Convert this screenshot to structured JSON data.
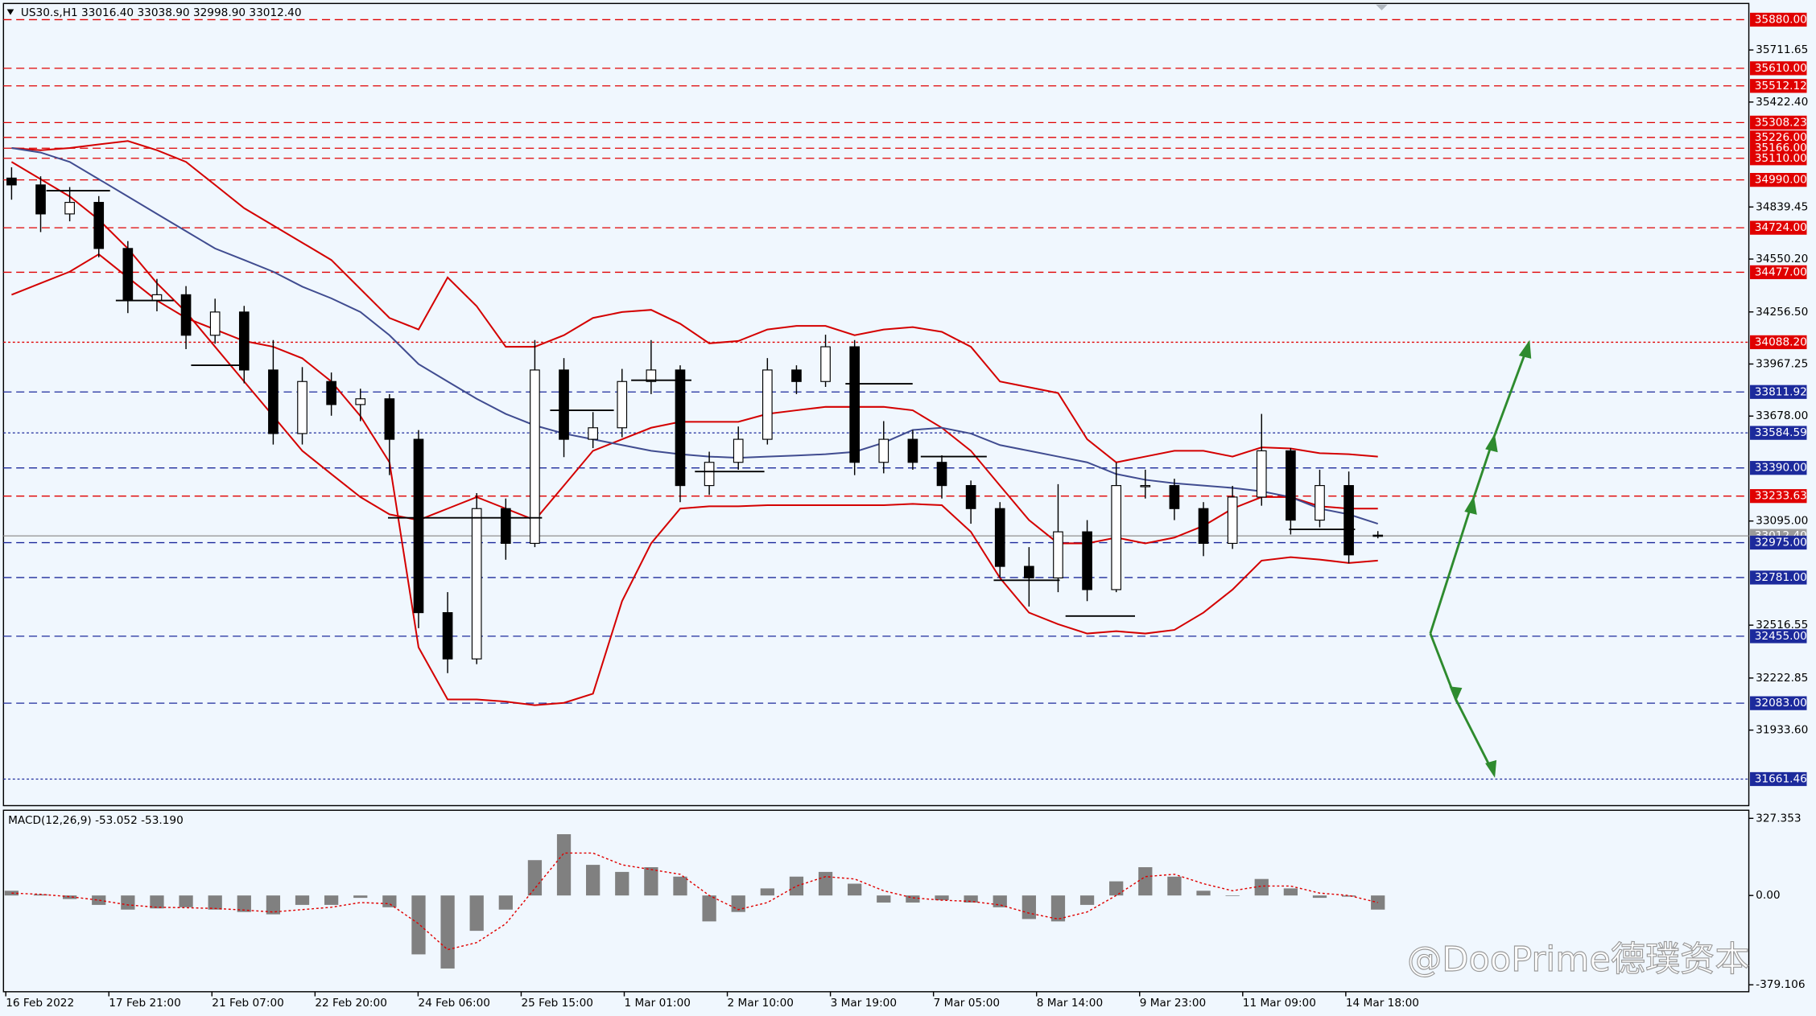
{
  "chart_data": [
    {
      "type": "candlestick",
      "title": "US30.s,H1  33016.40 33038.90 32998.90 33012.40",
      "x_labels": [
        "16 Feb 2022",
        "17 Feb 21:00",
        "21 Feb 07:00",
        "22 Feb 20:00",
        "24 Feb 06:00",
        "25 Feb 15:00",
        "1 Mar 01:00",
        "2 Mar 10:00",
        "3 Mar 19:00",
        "7 Mar 05:00",
        "8 Mar 14:00",
        "9 Mar 23:00",
        "11 Mar 09:00",
        "14 Mar 18:00"
      ],
      "ohlc": {
        "open": [
          35000,
          34962,
          34801,
          34865,
          34609,
          34320,
          34352,
          34127,
          34256,
          33934,
          33581,
          33870,
          33742,
          33774,
          33549,
          32586,
          32329,
          33164,
          32971,
          33934,
          33549,
          33613,
          33870,
          33934,
          33292,
          33421,
          33549,
          33934,
          33870,
          34063,
          33421,
          33549,
          33421,
          33292,
          33164,
          32843,
          32779,
          33035,
          32714,
          33292,
          33292,
          33164,
          32971,
          33228,
          33485,
          33100,
          33292,
          33016.4
        ],
        "high": [
          35060,
          35010,
          34950,
          34900,
          34650,
          34440,
          34400,
          34330,
          34290,
          34100,
          33950,
          33920,
          33830,
          33800,
          33600,
          32700,
          33250,
          33220,
          34100,
          34000,
          33700,
          33940,
          34100,
          33960,
          33480,
          33620,
          34000,
          33960,
          34130,
          34100,
          33650,
          33600,
          33460,
          33320,
          33200,
          32950,
          33300,
          33100,
          33420,
          33380,
          33330,
          33200,
          33290,
          33690,
          33500,
          33380,
          33370,
          33038.9
        ],
        "low": [
          34880,
          34700,
          34760,
          34560,
          34250,
          34260,
          34050,
          34080,
          33860,
          33520,
          33520,
          33680,
          33650,
          33350,
          32500,
          32250,
          32300,
          32880,
          32950,
          33450,
          33500,
          33560,
          33800,
          33200,
          33240,
          33380,
          33520,
          33800,
          33840,
          33350,
          33360,
          33380,
          33220,
          33080,
          32780,
          32620,
          32700,
          32650,
          32700,
          33220,
          33100,
          32900,
          32940,
          33180,
          33020,
          33060,
          32860,
          32998.9
        ],
        "close": [
          34962,
          34801,
          34865,
          34609,
          34320,
          34352,
          34127,
          34256,
          33934,
          33581,
          33870,
          33742,
          33774,
          33549,
          32586,
          32329,
          33164,
          32971,
          33934,
          33549,
          33613,
          33870,
          33934,
          33292,
          33421,
          33549,
          33934,
          33870,
          34063,
          33421,
          33549,
          33421,
          33292,
          33164,
          32843,
          32779,
          33035,
          32714,
          33292,
          33292,
          33164,
          32971,
          33228,
          33485,
          33100,
          33292,
          32907,
          33012.4
        ]
      },
      "overlays": [
        {
          "color": "#d40000",
          "values": [
            35167,
            35155,
            35167,
            35187,
            35206,
            35155,
            35090,
            34962,
            34833,
            34737,
            34641,
            34545,
            34384,
            34223,
            34159,
            34448,
            34288,
            34063,
            34063,
            34127,
            34223,
            34256,
            34268,
            34191,
            34082,
            34095,
            34159,
            34179,
            34179,
            34127,
            34159,
            34172,
            34146,
            34063,
            33870,
            33838,
            33806,
            33549,
            33421,
            33453,
            33485,
            33485,
            33453,
            33504,
            33498,
            33472,
            33466,
            33453
          ]
        },
        {
          "color": "#d40000",
          "values": [
            35090,
            34994,
            34898,
            34769,
            34609,
            34416,
            34256,
            34063,
            33870,
            33678,
            33485,
            33356,
            33228,
            33132,
            33100,
            33164,
            33228,
            33164,
            33100,
            33292,
            33485,
            33549,
            33613,
            33646,
            33646,
            33646,
            33690,
            33710,
            33729,
            33729,
            33729,
            33710,
            33613,
            33485,
            33292,
            33100,
            32971,
            32971,
            33003,
            32971,
            33003,
            33068,
            33164,
            33228,
            33228,
            33177,
            33164,
            33164
          ]
        },
        {
          "color": "#d40000",
          "values": [
            34352,
            34416,
            34480,
            34577,
            34448,
            34320,
            34223,
            34159,
            34095,
            34063,
            33999,
            33870,
            33678,
            33421,
            32393,
            32104,
            32104,
            32092,
            32072,
            32085,
            32136,
            32650,
            32971,
            33164,
            33177,
            33177,
            33183,
            33183,
            33183,
            33183,
            33183,
            33190,
            33183,
            33035,
            32779,
            32586,
            32522,
            32470,
            32483,
            32470,
            32490,
            32586,
            32714,
            32875,
            32894,
            32881,
            32862,
            32875
          ]
        },
        {
          "color": "#404c90",
          "values": [
            35167,
            35142,
            35090,
            34994,
            34898,
            34801,
            34705,
            34609,
            34545,
            34480,
            34397,
            34332,
            34256,
            34127,
            33967,
            33870,
            33774,
            33690,
            33626,
            33581,
            33549,
            33517,
            33485,
            33466,
            33453,
            33446,
            33453,
            33459,
            33466,
            33479,
            33530,
            33601,
            33613,
            33581,
            33517,
            33485,
            33453,
            33421,
            33356,
            33324,
            33305,
            33292,
            33279,
            33260,
            33228,
            33164,
            33132,
            33080
          ]
        }
      ],
      "levels": [
        {
          "value": 35880,
          "label": "35880.00",
          "color": "#e00000",
          "style": "dashed"
        },
        {
          "value": 35610,
          "label": "35610.00",
          "color": "#e00000",
          "style": "dashed"
        },
        {
          "value": 35512.12,
          "label": "35512.12",
          "color": "#e00000",
          "style": "dashed"
        },
        {
          "value": 35308.23,
          "label": "35308.23",
          "color": "#e00000",
          "style": "dashed"
        },
        {
          "value": 35226,
          "label": "35226.00",
          "color": "#e00000",
          "style": "dashed"
        },
        {
          "value": 35166,
          "label": "35166.00",
          "color": "#e00000",
          "style": "dashed"
        },
        {
          "value": 35110,
          "label": "35110.00",
          "color": "#e00000",
          "style": "dashed"
        },
        {
          "value": 34990,
          "label": "34990.00",
          "color": "#e00000",
          "style": "dashed"
        },
        {
          "value": 34724,
          "label": "34724.00",
          "color": "#e00000",
          "style": "dashed"
        },
        {
          "value": 34477,
          "label": "34477.00",
          "color": "#e00000",
          "style": "dashed"
        },
        {
          "value": 34088.2,
          "label": "34088.20",
          "color": "#e00000",
          "style": "dotted"
        },
        {
          "value": 33811.92,
          "label": "33811.92",
          "color": "#1c2a9c",
          "style": "dashed"
        },
        {
          "value": 33584.59,
          "label": "33584.59",
          "color": "#1c2a9c",
          "style": "dotted"
        },
        {
          "value": 33390,
          "label": "33390.00",
          "color": "#1c2a9c",
          "style": "dashed"
        },
        {
          "value": 33233.63,
          "label": "33233.63",
          "color": "#e00000",
          "style": "dashed"
        },
        {
          "value": 33012.4,
          "label": "33012.40",
          "color": "#9a9a9a",
          "style": "solid"
        },
        {
          "value": 32975,
          "label": "32975.00",
          "color": "#1c2a9c",
          "style": "dashed"
        },
        {
          "value": 32781,
          "label": "32781.00",
          "color": "#1c2a9c",
          "style": "dashed"
        },
        {
          "value": 32455,
          "label": "32455.00",
          "color": "#1c2a9c",
          "style": "dashed"
        },
        {
          "value": 32083,
          "label": "32083.00",
          "color": "#1c2a9c",
          "style": "dashed"
        },
        {
          "value": 31661.46,
          "label": "31661.46",
          "color": "#1c2a9c",
          "style": "dotted"
        }
      ],
      "ylim": [
        31514,
        35970
      ],
      "yticks": [
        35711.65,
        {
          "value": 35422.4,
          "label": "35422.40"
        },
        34839.45,
        {
          "value": 34550.2,
          "label": "34550.20"
        },
        {
          "value": 34256.5,
          "label": "34256.50"
        },
        33967.25,
        {
          "value": 33678,
          "label": "33678.00"
        },
        {
          "value": 33095,
          "label": "33095.00"
        },
        32516.55,
        32222.85,
        {
          "value": 31933.6,
          "label": "31933.60"
        }
      ]
    },
    {
      "type": "macd",
      "title": "MACD(12,26,9) -53.052 -53.190",
      "histogram": {
        "color": "#808080",
        "values": [
          20,
          5,
          -15,
          -40,
          -60,
          -55,
          -50,
          -60,
          -70,
          -80,
          -40,
          -40,
          -10,
          -50,
          -250,
          -310,
          -150,
          -60,
          150,
          260,
          130,
          100,
          120,
          80,
          -110,
          -70,
          30,
          80,
          100,
          50,
          -30,
          -30,
          -20,
          -30,
          -50,
          -100,
          -110,
          -40,
          60,
          120,
          80,
          20,
          0,
          70,
          30,
          -10,
          -5,
          -60
        ]
      },
      "signal": {
        "color": "#e00000",
        "values": [
          10,
          5,
          -5,
          -20,
          -40,
          -50,
          -52,
          -55,
          -62,
          -70,
          -60,
          -50,
          -30,
          -35,
          -120,
          -230,
          -200,
          -120,
          30,
          180,
          180,
          130,
          110,
          90,
          0,
          -60,
          -30,
          40,
          80,
          70,
          20,
          -10,
          -20,
          -25,
          -40,
          -75,
          -100,
          -70,
          0,
          80,
          90,
          50,
          20,
          40,
          40,
          10,
          0,
          -30
        ]
      },
      "ylim": [
        -379.106,
        327.353
      ],
      "yticks": [
        327.353,
        {
          "value": 0,
          "label": "0.00"
        },
        -379.106
      ]
    }
  ],
  "watermark": "@DooPrime德璞资本"
}
